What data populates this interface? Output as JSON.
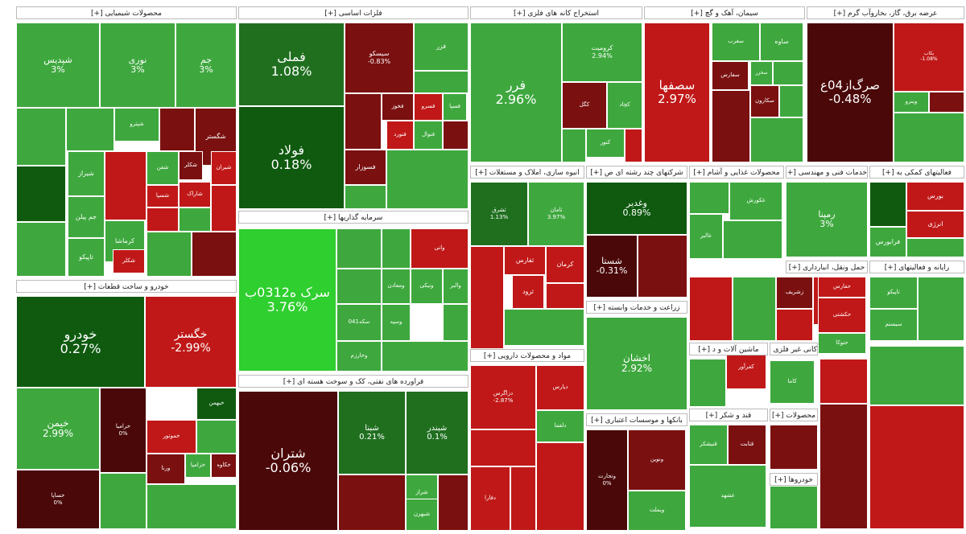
{
  "colors": {
    "strong_green": "#2ecf2e",
    "green": "#3ea83e",
    "dark_green": "#1f6f1f",
    "deep_green": "#0f5a0f",
    "red": "#c01818",
    "dark_red": "#7a1010",
    "deep_red": "#4a0808"
  },
  "sectors": [
    {
      "name": "محصولات شیمیایی [+]"
    },
    {
      "name": "فلزات اساسی [+]"
    },
    {
      "name": "استخراج کانه های فلزی [+]"
    },
    {
      "name": "سیمان، آهک و گچ [+]"
    },
    {
      "name": "عرضه برق، گاز، بخاروآب گرم [+]"
    },
    {
      "name": "خودرو و ساخت قطعات [+]"
    },
    {
      "name": "سرمایه گذاریها [+]"
    },
    {
      "name": "فراورده های نفتی، کک و سوخت هسته ای [+]"
    },
    {
      "name": "انبوه سازی، املاک و مستغلات [+]"
    },
    {
      "name": "شرکتهای چند رشته ای ص [+]"
    },
    {
      "name": "محصولات غذایی و آشام [+]"
    },
    {
      "name": "خدمات فنی و مهندسی [+]"
    },
    {
      "name": "فعالیتهای کمکی به [+]"
    },
    {
      "name": "زراعت و خدمات وابسته [+]"
    },
    {
      "name": "مواد و محصولات دارویی [+]"
    },
    {
      "name": "بانکها و موسسات اعتباری [+]"
    },
    {
      "name": "قند و شکر [+]"
    },
    {
      "name": "محصولات [+]"
    },
    {
      "name": "خودروها [+]"
    },
    {
      "name": "ماشین آلات و د [+]"
    },
    {
      "name": "کانی غیر فلزی [+]"
    },
    {
      "name": "حمل ونقل، انبارداری [+]"
    },
    {
      "name": "رایانه و فعالیتهای [+]"
    }
  ],
  "tiles": [
    {
      "symbol": "شپدیس",
      "pct": "3%",
      "tone": "green"
    },
    {
      "symbol": "نوری",
      "pct": "3%",
      "tone": "green"
    },
    {
      "symbol": "جم",
      "pct": "3%",
      "tone": "green"
    },
    {
      "symbol": "شگستر",
      "pct": "",
      "tone": "dark_red"
    },
    {
      "symbol": "شیراز",
      "pct": "",
      "tone": "green"
    },
    {
      "symbol": "شفن",
      "pct": "",
      "tone": "green"
    },
    {
      "symbol": "شکلر",
      "pct": "",
      "tone": "dark_red"
    },
    {
      "symbol": "شیران",
      "pct": "",
      "tone": "red"
    },
    {
      "symbol": "شاراک",
      "pct": "",
      "tone": "red"
    },
    {
      "symbol": "شپترو",
      "pct": "",
      "tone": "green"
    },
    {
      "symbol": "جم پیلن",
      "pct": "",
      "tone": "green"
    },
    {
      "symbol": "کرماشا",
      "pct": "",
      "tone": "green"
    },
    {
      "symbol": "شکلر",
      "pct": "",
      "tone": "red"
    },
    {
      "symbol": "تاپیکو",
      "pct": "",
      "tone": "green"
    },
    {
      "symbol": "شسپا",
      "pct": "",
      "tone": "red"
    },
    {
      "symbol": "فملی",
      "pct": "1.08%",
      "tone": "dark_green"
    },
    {
      "symbol": "فولاد",
      "pct": "0.18%",
      "tone": "deep_green"
    },
    {
      "symbol": "سیسکو",
      "pct": "-0.83%",
      "tone": "dark_red"
    },
    {
      "symbol": "فخوز",
      "pct": "",
      "tone": "dark_red"
    },
    {
      "symbol": "فسرو",
      "pct": "",
      "tone": "red"
    },
    {
      "symbol": "فسپا",
      "pct": "",
      "tone": "green"
    },
    {
      "symbol": "فزر",
      "pct": "",
      "tone": "green"
    },
    {
      "symbol": "فسوزار",
      "pct": "",
      "tone": "dark_red"
    },
    {
      "symbol": "فنورد",
      "pct": "",
      "tone": "red"
    },
    {
      "symbol": "فنوال",
      "pct": "",
      "tone": "green"
    },
    {
      "symbol": "فرر",
      "pct": "2.96%",
      "tone": "green"
    },
    {
      "symbol": "کرومیت",
      "pct": "2.94%",
      "tone": "green"
    },
    {
      "symbol": "کگل",
      "pct": "",
      "tone": "dark_red"
    },
    {
      "symbol": "کچاد",
      "pct": "",
      "tone": "green"
    },
    {
      "symbol": "کنور",
      "pct": "",
      "tone": "green"
    },
    {
      "symbol": "سصفها",
      "pct": "2.97%",
      "tone": "red"
    },
    {
      "symbol": "ساوه",
      "pct": "",
      "tone": "green"
    },
    {
      "symbol": "سفارس",
      "pct": "",
      "tone": "dark_red"
    },
    {
      "symbol": "سغرب",
      "pct": "",
      "tone": "green"
    },
    {
      "symbol": "سخزر",
      "pct": "",
      "tone": "green"
    },
    {
      "symbol": "سکارون",
      "pct": "",
      "tone": "dark_red"
    },
    {
      "symbol": "صرگ‌از04ع",
      "pct": "-0.48%",
      "tone": "deep_red"
    },
    {
      "symbol": "بکاب",
      "pct": "-1.08%",
      "tone": "red"
    },
    {
      "symbol": "وینرو",
      "pct": "",
      "tone": "green"
    },
    {
      "symbol": "خودرو",
      "pct": "0.27%",
      "tone": "deep_green"
    },
    {
      "symbol": "خگستر",
      "pct": "-2.99%",
      "tone": "red"
    },
    {
      "symbol": "خبهمن",
      "pct": "",
      "tone": "deep_green"
    },
    {
      "symbol": "خیمن",
      "pct": "2.99%",
      "tone": "green"
    },
    {
      "symbol": "خرامیا",
      "pct": "0%",
      "tone": "deep_red"
    },
    {
      "symbol": "خموتور",
      "pct": "",
      "tone": "red"
    },
    {
      "symbol": "خساپا",
      "pct": "0%",
      "tone": "deep_red"
    },
    {
      "symbol": "ورنا",
      "pct": "",
      "tone": "dark_red"
    },
    {
      "symbol": "خزامیا",
      "pct": "",
      "tone": "green"
    },
    {
      "symbol": "خکاوه",
      "pct": "",
      "tone": "dark_red"
    },
    {
      "symbol": "سرک ه0312ب",
      "pct": "3.76%",
      "tone": "strong_green"
    },
    {
      "symbol": "ومعادن",
      "pct": "",
      "tone": "green"
    },
    {
      "symbol": "ونیکی",
      "pct": "",
      "tone": "green"
    },
    {
      "symbol": "وسپه",
      "pct": "",
      "tone": "green"
    },
    {
      "symbol": "وخارزم",
      "pct": "",
      "tone": "green"
    },
    {
      "symbol": "والبر",
      "pct": "",
      "tone": "green"
    },
    {
      "symbol": "واتی",
      "pct": "",
      "tone": "red"
    },
    {
      "symbol": "سکه041",
      "pct": "",
      "tone": "green"
    },
    {
      "symbol": "شتران",
      "pct": "-0.06%",
      "tone": "deep_red"
    },
    {
      "symbol": "شبنا",
      "pct": "0.21%",
      "tone": "dark_green"
    },
    {
      "symbol": "شبندر",
      "pct": "0.1%",
      "tone": "dark_green"
    },
    {
      "symbol": "شراز",
      "pct": "",
      "tone": "green"
    },
    {
      "symbol": "شبهرن",
      "pct": "",
      "tone": "green"
    },
    {
      "symbol": "ثشرق",
      "pct": "1.13%",
      "tone": "dark_green"
    },
    {
      "symbol": "ثامان",
      "pct": "3.97%",
      "tone": "green"
    },
    {
      "symbol": "ثفارس",
      "pct": "",
      "tone": "red"
    },
    {
      "symbol": "ثرود",
      "pct": "",
      "tone": "red"
    },
    {
      "symbol": "کرمان",
      "pct": "",
      "tone": "red"
    },
    {
      "symbol": "وغدیر",
      "pct": "0.89%",
      "tone": "deep_green"
    },
    {
      "symbol": "شستا",
      "pct": "-0.31%",
      "tone": "deep_red"
    },
    {
      "symbol": "غالبر",
      "pct": "",
      "tone": "green"
    },
    {
      "symbol": "غکورش",
      "pct": "",
      "tone": "green"
    },
    {
      "symbol": "رمپنا",
      "pct": "3%",
      "tone": "green"
    },
    {
      "symbol": "بورس",
      "pct": "",
      "tone": "red"
    },
    {
      "symbol": "انرژی",
      "pct": "",
      "tone": "red"
    },
    {
      "symbol": "فرابورس",
      "pct": "",
      "tone": "green"
    },
    {
      "symbol": "زشریف",
      "pct": "",
      "tone": "dark_red"
    },
    {
      "symbol": "زاگرس",
      "pct": "",
      "tone": "red"
    },
    {
      "symbol": "اخشان",
      "pct": "2.92%",
      "tone": "green"
    },
    {
      "symbol": "دزاگرس",
      "pct": "-2.87%",
      "tone": "red"
    },
    {
      "symbol": "دپارس",
      "pct": "",
      "tone": "red"
    },
    {
      "symbol": "دلقما",
      "pct": "",
      "tone": "green"
    },
    {
      "symbol": "دفارا",
      "pct": "",
      "tone": "red"
    },
    {
      "symbol": "وتجارت",
      "pct": "0%",
      "tone": "deep_red"
    },
    {
      "symbol": "ونوین",
      "pct": "",
      "tone": "dark_red"
    },
    {
      "symbol": "وبملت",
      "pct": "",
      "tone": "green"
    },
    {
      "symbol": "قنیشکر",
      "pct": "",
      "tone": "green"
    },
    {
      "symbol": "قثابت",
      "pct": "",
      "tone": "dark_red"
    },
    {
      "symbol": "غشهد",
      "pct": "",
      "tone": "green"
    },
    {
      "symbol": "کفرآور",
      "pct": "",
      "tone": "red"
    },
    {
      "symbol": "کاما",
      "pct": "",
      "tone": "green"
    },
    {
      "symbol": "حکشتی",
      "pct": "",
      "tone": "red"
    },
    {
      "symbol": "حفارس",
      "pct": "",
      "tone": "red"
    },
    {
      "symbol": "حتوکا",
      "pct": "",
      "tone": "green"
    },
    {
      "symbol": "تاپیکو",
      "pct": "",
      "tone": "green"
    },
    {
      "symbol": "سیستم",
      "pct": "",
      "tone": "green"
    }
  ]
}
